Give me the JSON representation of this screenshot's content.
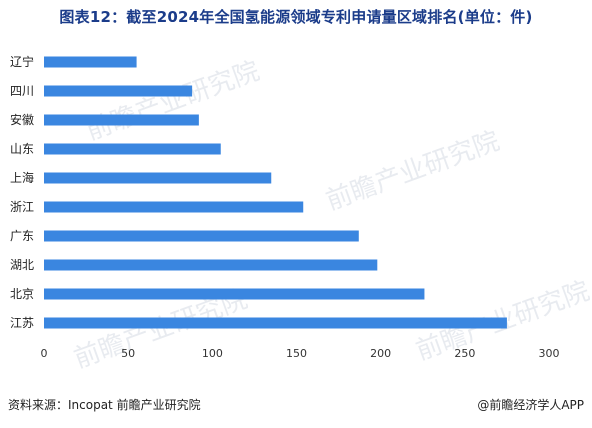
{
  "header": {
    "title": "图表12：截至2024年全国氢能源领域专利申请量区域排名(单位：件)"
  },
  "footer": {
    "source": "资料来源：Incopat 前瞻产业研究院",
    "brand": "@前瞻经济学人APP"
  },
  "watermark": {
    "text": "前瞻产业研究院"
  },
  "chart_data": {
    "type": "bar",
    "orientation": "horizontal",
    "title": "图表12：截至2024年全国氢能源领域专利申请量区域排名(单位：件)",
    "categories": [
      "辽宁",
      "四川",
      "安徽",
      "山东",
      "上海",
      "浙江",
      "广东",
      "湖北",
      "北京",
      "江苏"
    ],
    "values": [
      55,
      88,
      92,
      105,
      135,
      154,
      187,
      198,
      226,
      275
    ],
    "xlim": [
      0,
      300
    ],
    "xticks": [
      0,
      50,
      100,
      150,
      200,
      250,
      300
    ],
    "grid": false,
    "bar_color": "#3a86e0"
  }
}
